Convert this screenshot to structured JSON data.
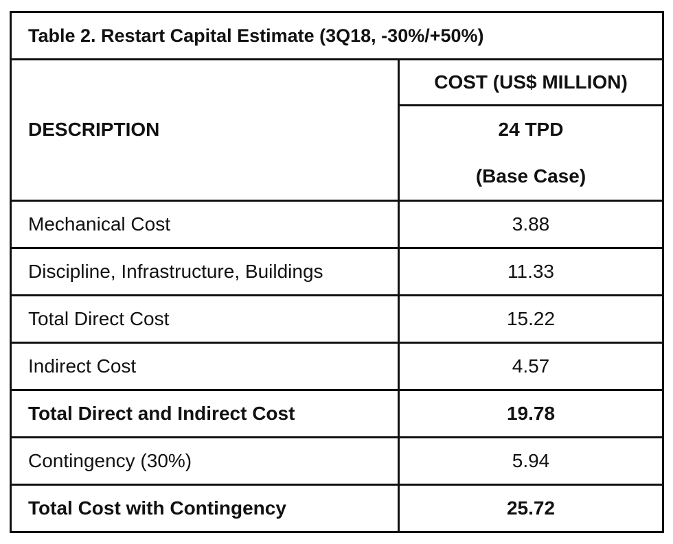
{
  "title": "Table 2. Restart Capital Estimate (3Q18, -30%/+50%)",
  "header": {
    "description": "DESCRIPTION",
    "cost": "COST (US$ MILLION)",
    "case_line1": "24 TPD",
    "case_line2": "(Base Case)"
  },
  "rows": [
    {
      "label": "Mechanical Cost",
      "value": "3.88",
      "bold": false
    },
    {
      "label": "Discipline, Infrastructure, Buildings",
      "value": "11.33",
      "bold": false
    },
    {
      "label": "Total Direct Cost",
      "value": "15.22",
      "bold": false
    },
    {
      "label": "Indirect Cost",
      "value": "4.57",
      "bold": false
    },
    {
      "label": "Total Direct and Indirect Cost",
      "value": "19.78",
      "bold": true
    },
    {
      "label": "Contingency (30%)",
      "value": "5.94",
      "bold": false
    },
    {
      "label": "Total Cost with Contingency",
      "value": "25.72",
      "bold": true
    }
  ]
}
